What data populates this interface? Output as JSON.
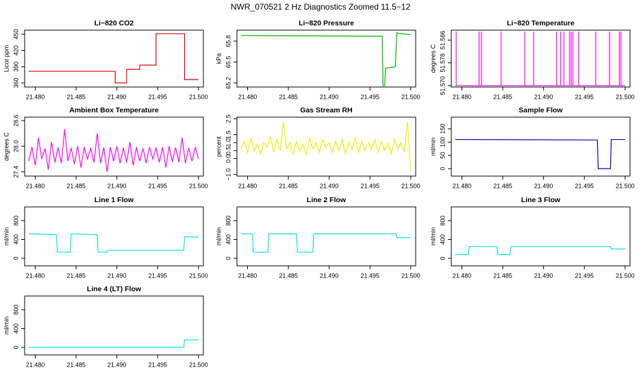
{
  "title": "NWR_070521  2 Hz Diagnostics Zoomed 11.5−12",
  "chart_data": [
    {
      "type": "line",
      "title": "Li−820 CO2",
      "ylabel": "Licor ppm",
      "color": "#e00000",
      "x": [
        21.4792,
        21.4898,
        21.4898,
        21.4912,
        21.4912,
        21.4928,
        21.4928,
        21.4948,
        21.4948,
        21.4983,
        21.4983,
        21.5
      ],
      "values": [
        381.5,
        381.5,
        360,
        360,
        385,
        385,
        393,
        393,
        451,
        451,
        366,
        366
      ],
      "xlim": [
        21.4787,
        21.5006
      ],
      "ylim": [
        352.4,
        457.6
      ],
      "xticks": [
        {
          "value": 21.48,
          "label": "21.480"
        },
        {
          "value": 21.485,
          "label": "21.485"
        },
        {
          "value": 21.49,
          "label": "21.490"
        },
        {
          "value": 21.495,
          "label": "21.495"
        },
        {
          "value": 21.5,
          "label": "21.500"
        }
      ],
      "yticks": [
        360,
        390,
        420,
        450
      ]
    },
    {
      "type": "line",
      "title": "Li−820 Pressure",
      "ylabel": "kPa",
      "color": "#00b000",
      "x": [
        21.4792,
        21.4965,
        21.4966,
        21.4968,
        21.4969,
        21.4981,
        21.4983,
        21.4986,
        21.5
      ],
      "values": [
        65.88,
        65.87,
        65.16,
        65.16,
        65.41,
        65.43,
        65.92,
        65.91,
        65.89
      ],
      "xlim": [
        21.4787,
        21.5006
      ],
      "ylim": [
        65.141,
        65.957
      ],
      "xticks": [
        {
          "value": 21.48,
          "label": "21.480"
        },
        {
          "value": 21.485,
          "label": "21.485"
        },
        {
          "value": 21.49,
          "label": "21.490"
        },
        {
          "value": 21.495,
          "label": "21.495"
        },
        {
          "value": 21.5,
          "label": "21.500"
        }
      ],
      "yticks": [
        65.2,
        65.5,
        65.8
      ]
    },
    {
      "type": "line",
      "title": "Li−820 Temperature",
      "ylabel": "degrees C",
      "color": "#ff00ff",
      "x": [
        21.4792,
        21.4793,
        21.4793,
        21.4793,
        21.4821,
        21.4821,
        21.4821,
        21.4824,
        21.4824,
        21.4824,
        21.4848,
        21.4848,
        21.4848,
        21.4877,
        21.4877,
        21.4877,
        21.4888,
        21.4888,
        21.4888,
        21.4916,
        21.4916,
        21.4916,
        21.4921,
        21.4921,
        21.4921,
        21.4925,
        21.4925,
        21.4925,
        21.4932,
        21.4932,
        21.4932,
        21.4934,
        21.4934,
        21.4934,
        21.4936,
        21.4936,
        21.4936,
        21.4943,
        21.4943,
        21.4943,
        21.4964,
        21.4964,
        21.4964,
        21.4981,
        21.4981,
        21.4981,
        21.4993,
        21.4993,
        21.4993,
        21.4995,
        21.4995,
        21.4995,
        21.5
      ],
      "values": [
        51.57,
        51.57,
        51.589,
        51.57,
        51.57,
        51.589,
        51.57,
        51.57,
        51.589,
        51.57,
        51.57,
        51.589,
        51.57,
        51.57,
        51.589,
        51.57,
        51.57,
        51.589,
        51.57,
        51.57,
        51.589,
        51.57,
        51.57,
        51.589,
        51.57,
        51.57,
        51.589,
        51.57,
        51.57,
        51.589,
        51.57,
        51.57,
        51.589,
        51.57,
        51.57,
        51.589,
        51.57,
        51.57,
        51.589,
        51.57,
        51.57,
        51.589,
        51.57,
        51.57,
        51.589,
        51.57,
        51.57,
        51.589,
        51.57,
        51.57,
        51.589,
        51.57,
        51.57
      ],
      "xlim": [
        21.4787,
        21.5006
      ],
      "ylim": [
        51.5695,
        51.5895
      ],
      "xticks": [
        {
          "value": 21.48,
          "label": "21.480"
        },
        {
          "value": 21.485,
          "label": "21.485"
        },
        {
          "value": 21.49,
          "label": "21.490"
        },
        {
          "value": 21.495,
          "label": "21.495"
        },
        {
          "value": 21.5,
          "label": "21.500"
        }
      ],
      "yticks": [
        {
          "value": 51.57,
          "label": "51.570"
        },
        {
          "value": 51.578,
          "label": "51.578"
        },
        {
          "value": 51.586,
          "label": "51.586"
        }
      ]
    },
    {
      "type": "line",
      "title": "Ambient Box Temperature",
      "ylabel": "degrees C",
      "color": "#ff00ff",
      "x": [
        21.4792,
        21.4796,
        21.48,
        21.4804,
        21.4808,
        21.4812,
        21.4816,
        21.482,
        21.4824,
        21.4828,
        21.4832,
        21.4836,
        21.484,
        21.4844,
        21.4848,
        21.4852,
        21.4856,
        21.486,
        21.4864,
        21.4868,
        21.4872,
        21.4876,
        21.488,
        21.4884,
        21.4888,
        21.4892,
        21.4896,
        21.49,
        21.4904,
        21.4908,
        21.4912,
        21.4916,
        21.492,
        21.4924,
        21.4928,
        21.4932,
        21.4936,
        21.494,
        21.4944,
        21.4948,
        21.4952,
        21.4956,
        21.496,
        21.4964,
        21.4968,
        21.4972,
        21.4976,
        21.498,
        21.4984,
        21.4988,
        21.4992,
        21.4996,
        21.5
      ],
      "values": [
        27.65,
        27.98,
        27.55,
        28.2,
        27.7,
        27.95,
        27.45,
        28.1,
        27.62,
        27.97,
        27.6,
        28.4,
        27.65,
        27.96,
        27.58,
        28.0,
        27.5,
        27.98,
        27.7,
        27.95,
        27.62,
        28.3,
        27.6,
        27.97,
        27.4,
        27.98,
        27.65,
        28.0,
        27.6,
        27.96,
        27.62,
        28.1,
        27.55,
        27.98,
        27.65,
        27.95,
        27.6,
        27.98,
        27.7,
        27.96,
        27.62,
        27.98,
        27.5,
        28.0,
        27.63,
        27.97,
        27.62,
        28.2,
        27.6,
        27.96,
        27.65,
        27.98,
        27.7
      ],
      "xlim": [
        21.4787,
        21.5006
      ],
      "ylim": [
        27.3,
        28.68
      ],
      "xticks": [
        {
          "value": 21.48,
          "label": "21.480"
        },
        {
          "value": 21.485,
          "label": "21.485"
        },
        {
          "value": 21.49,
          "label": "21.490"
        },
        {
          "value": 21.495,
          "label": "21.495"
        },
        {
          "value": 21.5,
          "label": "21.500"
        }
      ],
      "yticks": [
        27.4,
        {
          "value": 28.0,
          "label": "28.0"
        },
        28.6
      ]
    },
    {
      "type": "line",
      "title": "Gas Stream RH",
      "ylabel": "percent",
      "color": "#f0f000",
      "x": [
        21.4792,
        21.4796,
        21.48,
        21.4804,
        21.4808,
        21.4812,
        21.4816,
        21.482,
        21.4824,
        21.4828,
        21.4832,
        21.4836,
        21.484,
        21.4844,
        21.4848,
        21.4852,
        21.4856,
        21.486,
        21.4864,
        21.4868,
        21.4872,
        21.4876,
        21.488,
        21.4884,
        21.4888,
        21.4892,
        21.4896,
        21.49,
        21.4904,
        21.4908,
        21.4912,
        21.4916,
        21.492,
        21.4924,
        21.4928,
        21.4932,
        21.4936,
        21.494,
        21.4944,
        21.4948,
        21.4952,
        21.4956,
        21.496,
        21.4964,
        21.4968,
        21.4972,
        21.4976,
        21.498,
        21.4984,
        21.4988,
        21.4992,
        21.4996,
        21.5
      ],
      "values": [
        0.6,
        1.1,
        0.4,
        1.3,
        0.5,
        0.9,
        0.3,
        1.0,
        0.7,
        1.4,
        0.4,
        1.2,
        0.5,
        2.3,
        0.6,
        1.0,
        0.3,
        1.1,
        0.5,
        0.9,
        0.2,
        1.3,
        0.6,
        1.0,
        0.4,
        1.2,
        0.7,
        1.0,
        0.4,
        1.1,
        0.5,
        1.2,
        0.3,
        1.0,
        0.6,
        1.3,
        0.4,
        1.1,
        0.5,
        1.0,
        0.6,
        1.2,
        0.4,
        1.1,
        0.5,
        1.0,
        0.3,
        1.2,
        0.6,
        1.0,
        0.4,
        2.3,
        -0.8
      ],
      "xlim": [
        21.4787,
        21.5006
      ],
      "ylim": [
        -1.1,
        2.6
      ],
      "xticks": [
        {
          "value": 21.48,
          "label": "21.480"
        },
        {
          "value": 21.485,
          "label": "21.485"
        },
        {
          "value": 21.49,
          "label": "21.490"
        },
        {
          "value": 21.495,
          "label": "21.495"
        },
        {
          "value": 21.5,
          "label": "21.500"
        }
      ],
      "yticks": [
        {
          "value": -1.0,
          "label": "−1.0"
        },
        {
          "value": 0.0,
          "label": "0.0"
        },
        0.5,
        {
          "value": 1.0,
          "label": "1.0"
        },
        1.5,
        2.5
      ]
    },
    {
      "type": "line",
      "title": "Sample Flow",
      "ylabel": "ml/min",
      "color": "#0000cc",
      "x": [
        21.4792,
        21.4966,
        21.4967,
        21.4982,
        21.4983,
        21.5
      ],
      "values": [
        110,
        108,
        0,
        0,
        110,
        110
      ],
      "xlim": [
        21.4787,
        21.5006
      ],
      "ylim": [
        -28,
        194
      ],
      "xticks": [
        {
          "value": 21.48,
          "label": "21.480"
        },
        {
          "value": 21.485,
          "label": "21.485"
        },
        {
          "value": 21.49,
          "label": "21.490"
        },
        {
          "value": 21.495,
          "label": "21.495"
        },
        {
          "value": 21.5,
          "label": "21.500"
        }
      ],
      "yticks": [
        0,
        50,
        100,
        150
      ]
    },
    {
      "type": "line",
      "title": "Line 1 Flow",
      "ylabel": "ml/min",
      "color": "#00e8e8",
      "x": [
        21.4792,
        21.4826,
        21.4827,
        21.4843,
        21.4844,
        21.4876,
        21.4877,
        21.4888,
        21.4889,
        21.4982,
        21.4983,
        21.5
      ],
      "values": [
        520,
        500,
        130,
        130,
        520,
        500,
        130,
        130,
        170,
        170,
        460,
        450
      ],
      "xlim": [
        21.4787,
        21.5006
      ],
      "ylim": [
        -160,
        1090
      ],
      "xticks": [
        {
          "value": 21.48,
          "label": "21.480"
        },
        {
          "value": 21.485,
          "label": "21.485"
        },
        {
          "value": 21.49,
          "label": "21.490"
        },
        {
          "value": 21.495,
          "label": "21.495"
        },
        {
          "value": 21.5,
          "label": "21.500"
        }
      ],
      "yticks": [
        0,
        400,
        800
      ]
    },
    {
      "type": "line",
      "title": "Line 2 Flow",
      "ylabel": "ml/min",
      "color": "#00e8e8",
      "x": [
        21.4792,
        21.4806,
        21.4807,
        21.4825,
        21.4826,
        21.486,
        21.4861,
        21.488,
        21.4881,
        21.4982,
        21.4983,
        21.5
      ],
      "values": [
        520,
        520,
        130,
        130,
        520,
        520,
        130,
        130,
        520,
        520,
        440,
        440
      ],
      "xlim": [
        21.4787,
        21.5006
      ],
      "ylim": [
        -160,
        1090
      ],
      "xticks": [
        {
          "value": 21.48,
          "label": "21.480"
        },
        {
          "value": 21.485,
          "label": "21.485"
        },
        {
          "value": 21.49,
          "label": "21.490"
        },
        {
          "value": 21.495,
          "label": "21.495"
        },
        {
          "value": 21.5,
          "label": "21.500"
        }
      ],
      "yticks": [
        0,
        400,
        800
      ]
    },
    {
      "type": "line",
      "title": "Line 3 Flow",
      "ylabel": "ml/min",
      "color": "#00e8e8",
      "x": [
        21.4792,
        21.4808,
        21.4809,
        21.4843,
        21.4844,
        21.4859,
        21.486,
        21.4982,
        21.4983,
        21.5
      ],
      "values": [
        80,
        80,
        250,
        250,
        80,
        80,
        250,
        250,
        200,
        200
      ],
      "xlim": [
        21.4787,
        21.5006
      ],
      "ylim": [
        -160,
        1090
      ],
      "xticks": [
        {
          "value": 21.48,
          "label": "21.480"
        },
        {
          "value": 21.485,
          "label": "21.485"
        },
        {
          "value": 21.49,
          "label": "21.490"
        },
        {
          "value": 21.495,
          "label": "21.495"
        },
        {
          "value": 21.5,
          "label": "21.500"
        }
      ],
      "yticks": [
        0,
        400,
        800
      ]
    },
    {
      "type": "line",
      "title": "Line 4 (LT) Flow",
      "ylabel": "ml/min",
      "color": "#00e8e8",
      "x": [
        21.4792,
        21.4982,
        21.4983,
        21.5
      ],
      "values": [
        0,
        0,
        160,
        160
      ],
      "xlim": [
        21.4787,
        21.5006
      ],
      "ylim": [
        -160,
        1090
      ],
      "xticks": [
        {
          "value": 21.48,
          "label": "21.480"
        },
        {
          "value": 21.485,
          "label": "21.485"
        },
        {
          "value": 21.49,
          "label": "21.490"
        },
        {
          "value": 21.495,
          "label": "21.495"
        },
        {
          "value": 21.5,
          "label": "21.500"
        }
      ],
      "yticks": [
        0,
        400,
        800
      ]
    }
  ]
}
